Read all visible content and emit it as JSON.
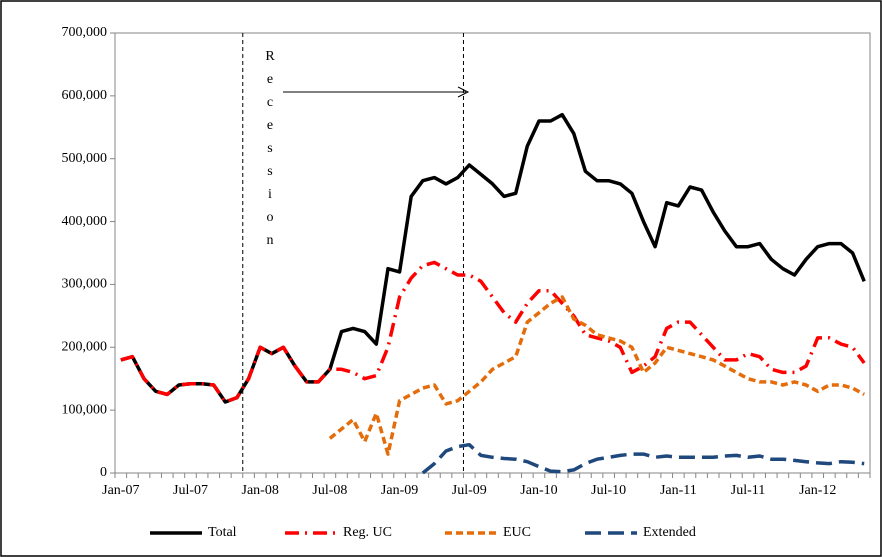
{
  "chart_data": {
    "type": "line",
    "annotation": "Recession",
    "categories": [
      "Jan-07",
      null,
      null,
      null,
      null,
      null,
      "Jul-07",
      null,
      null,
      null,
      null,
      null,
      "Jan-08",
      null,
      null,
      null,
      null,
      null,
      "Jul-08",
      null,
      null,
      null,
      null,
      null,
      "Jan-09",
      null,
      null,
      null,
      null,
      null,
      "Jul-09",
      null,
      null,
      null,
      null,
      null,
      "Jan-10",
      null,
      null,
      null,
      null,
      null,
      "Jul-10",
      null,
      null,
      null,
      null,
      null,
      "Jan-11",
      null,
      null,
      null,
      null,
      null,
      "Jul-11",
      null,
      null,
      null,
      null,
      null,
      "Jan-12",
      null,
      null,
      null,
      null
    ],
    "series": [
      {
        "name": "Total",
        "color": "#000000",
        "dash": "solid",
        "values": [
          180000,
          185000,
          150000,
          130000,
          125000,
          140000,
          142000,
          142000,
          140000,
          113000,
          120000,
          150000,
          200000,
          190000,
          200000,
          170000,
          145000,
          145000,
          165000,
          225000,
          230000,
          225000,
          205000,
          325000,
          320000,
          440000,
          465000,
          470000,
          460000,
          470000,
          490000,
          475000,
          460000,
          440000,
          445000,
          520000,
          560000,
          560000,
          570000,
          540000,
          480000,
          465000,
          465000,
          460000,
          445000,
          400000,
          360000,
          430000,
          425000,
          455000,
          450000,
          415000,
          385000,
          360000,
          360000,
          365000,
          340000,
          325000,
          315000,
          340000,
          360000,
          365000,
          365000,
          350000,
          305000
        ]
      },
      {
        "name": "Reg. UC",
        "color": "#ff0000",
        "dash": "dashdot",
        "values": [
          180000,
          185000,
          150000,
          130000,
          125000,
          140000,
          142000,
          142000,
          140000,
          113000,
          120000,
          150000,
          200000,
          190000,
          200000,
          170000,
          145000,
          145000,
          165000,
          165000,
          160000,
          150000,
          155000,
          200000,
          280000,
          310000,
          330000,
          335000,
          325000,
          315000,
          315000,
          305000,
          280000,
          255000,
          240000,
          270000,
          290000,
          290000,
          270000,
          250000,
          220000,
          215000,
          210000,
          200000,
          160000,
          170000,
          185000,
          230000,
          240000,
          240000,
          220000,
          200000,
          180000,
          180000,
          190000,
          185000,
          165000,
          160000,
          160000,
          170000,
          215000,
          215000,
          205000,
          200000,
          175000
        ]
      },
      {
        "name": "EUC",
        "color": "#e46c0a",
        "dash": "dashed",
        "values": [
          null,
          null,
          null,
          null,
          null,
          null,
          null,
          null,
          null,
          null,
          null,
          null,
          null,
          null,
          null,
          null,
          null,
          null,
          55000,
          70000,
          85000,
          50000,
          95000,
          30000,
          115000,
          125000,
          135000,
          140000,
          110000,
          115000,
          130000,
          145000,
          165000,
          175000,
          185000,
          240000,
          255000,
          270000,
          280000,
          245000,
          235000,
          220000,
          215000,
          210000,
          200000,
          160000,
          175000,
          200000,
          195000,
          190000,
          185000,
          180000,
          170000,
          160000,
          150000,
          145000,
          145000,
          140000,
          145000,
          140000,
          130000,
          140000,
          140000,
          135000,
          125000
        ]
      },
      {
        "name": "Extended",
        "color": "#1f497d",
        "dash": "longdash",
        "values": [
          null,
          null,
          null,
          null,
          null,
          null,
          null,
          null,
          null,
          null,
          null,
          null,
          null,
          null,
          null,
          null,
          null,
          null,
          null,
          null,
          null,
          null,
          null,
          null,
          null,
          null,
          0,
          15000,
          35000,
          42000,
          45000,
          28000,
          25000,
          23000,
          22000,
          18000,
          10000,
          3000,
          2000,
          5000,
          15000,
          22000,
          25000,
          28000,
          30000,
          30000,
          25000,
          27000,
          25000,
          25000,
          25000,
          25000,
          27000,
          28000,
          25000,
          27000,
          22000,
          22000,
          20000,
          18000,
          16000,
          15000,
          18000,
          17000,
          15000
        ]
      }
    ],
    "ylim": [
      0,
      700000
    ],
    "yticks": [
      0,
      {
        "value": 100000,
        "label": "100,000"
      },
      {
        "value": 200000,
        "label": "200,000"
      },
      {
        "value": 300000,
        "label": "300,000"
      },
      {
        "value": 400000,
        "label": "400,000"
      },
      {
        "value": 500000,
        "label": "500,000"
      },
      {
        "value": 600000,
        "label": "600,000"
      },
      {
        "value": 700000,
        "label": "700,000"
      }
    ],
    "grid": false,
    "legend": "bottom"
  }
}
